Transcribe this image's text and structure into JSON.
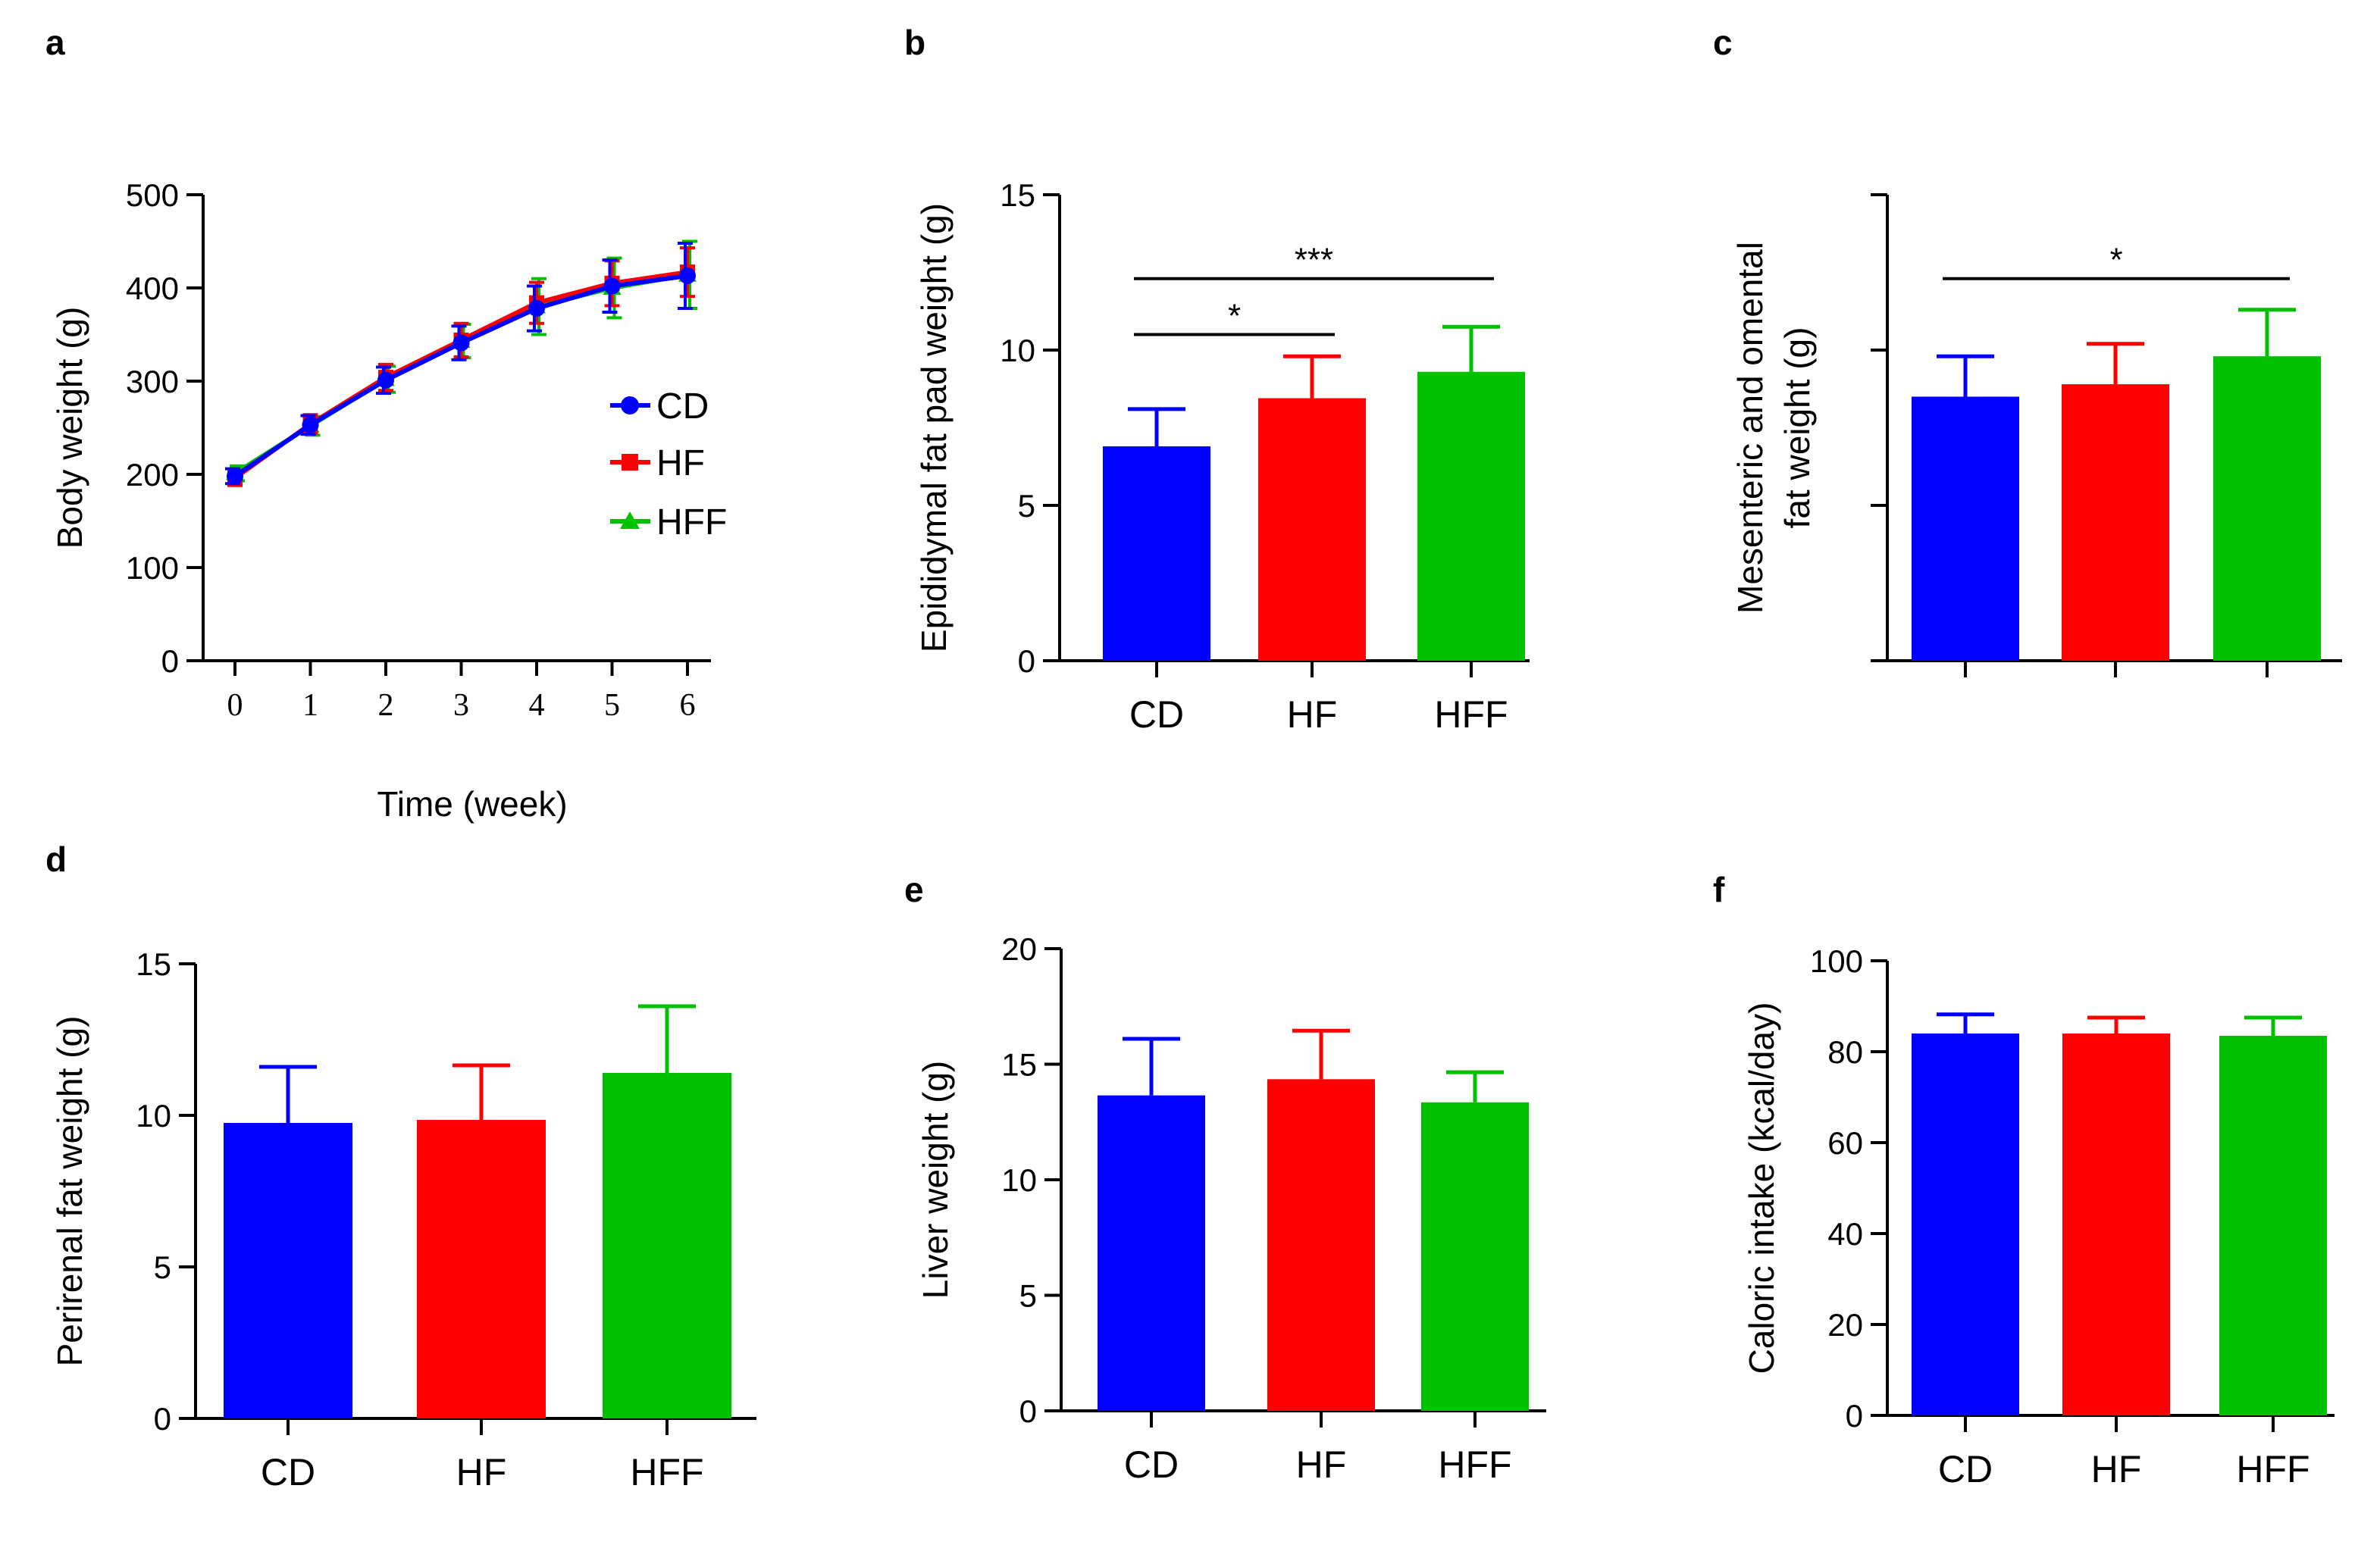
{
  "colors": {
    "CD": "#0000ff",
    "HF": "#ff0000",
    "HFF": "#00c000"
  },
  "chart_data": [
    {
      "id": "a",
      "panel_label": "a",
      "type": "line",
      "xlabel": "Time (week)",
      "ylabel": "Body  weight (g)",
      "x": [
        0,
        1,
        2,
        3,
        4,
        5,
        6
      ],
      "x_tick_labels": [
        "0",
        "1",
        "2",
        "3",
        "4",
        "5",
        "6"
      ],
      "ylim": [
        0,
        500
      ],
      "y_ticks": [
        0,
        100,
        200,
        300,
        400,
        500
      ],
      "legend_position": "middle-right",
      "series": [
        {
          "name": "CD",
          "marker": "circle",
          "values": [
            198,
            253,
            301,
            341,
            378,
            402,
            413
          ],
          "errors": [
            8,
            10,
            14,
            18,
            24,
            28,
            35
          ]
        },
        {
          "name": "HF",
          "marker": "square",
          "values": [
            196,
            254,
            304,
            344,
            384,
            405,
            417
          ],
          "errors": [
            8,
            10,
            14,
            18,
            22,
            24,
            26
          ]
        },
        {
          "name": "HFF",
          "marker": "triangle",
          "values": [
            201,
            252,
            302,
            343,
            380,
            400,
            414
          ],
          "errors": [
            8,
            10,
            14,
            18,
            30,
            32,
            36
          ]
        }
      ]
    },
    {
      "id": "b",
      "panel_label": "b",
      "type": "bar",
      "ylabel": "Epididymal fat pad weight (g)",
      "categories": [
        "CD",
        "HF",
        "HFF"
      ],
      "values": [
        6.9,
        8.45,
        9.3
      ],
      "errors": [
        1.2,
        1.35,
        1.45
      ],
      "ylim": [
        0,
        15
      ],
      "y_ticks": [
        0,
        5,
        10,
        15
      ],
      "significance": [
        {
          "from": 0,
          "to": 1,
          "label": "*",
          "y": 10.5
        },
        {
          "from": 0,
          "to": 2,
          "label": "***",
          "y": 12.3
        }
      ]
    },
    {
      "id": "c",
      "panel_label": "c",
      "type": "bar",
      "ylabel": "Mesenteric and omental fat weight (g)",
      "ylabel_lines": [
        "Mesenteric and omental",
        "fat weight (g)"
      ],
      "categories": [
        "",
        "",
        ""
      ],
      "values": [
        8.5,
        8.9,
        9.8
      ],
      "errors": [
        1.3,
        1.3,
        1.5
      ],
      "ylim": [
        0,
        15
      ],
      "y_ticks": [
        0,
        5,
        10,
        15
      ],
      "show_tick_labels": false,
      "significance": [
        {
          "from": 0,
          "to": 2,
          "label": "*",
          "y": 12.3
        }
      ]
    },
    {
      "id": "d",
      "panel_label": "d",
      "type": "bar",
      "ylabel": "Perirenal fat  weight (g)",
      "categories": [
        "CD",
        "HF",
        "HFF"
      ],
      "values": [
        9.75,
        9.85,
        11.4
      ],
      "errors": [
        1.85,
        1.8,
        2.2
      ],
      "ylim": [
        0,
        15
      ],
      "y_ticks": [
        0,
        5,
        10,
        15
      ]
    },
    {
      "id": "e",
      "panel_label": "e",
      "type": "bar",
      "ylabel": "Liver weight (g)",
      "categories": [
        "CD",
        "HF",
        "HFF"
      ],
      "values": [
        13.65,
        14.35,
        13.35
      ],
      "errors": [
        2.45,
        2.1,
        1.3
      ],
      "ylim": [
        0,
        20
      ],
      "y_ticks": [
        0,
        5,
        10,
        15,
        20
      ]
    },
    {
      "id": "f",
      "panel_label": "f",
      "type": "bar",
      "ylabel": "Caloric intake (kcal/day)",
      "categories": [
        "CD",
        "HF",
        "HFF"
      ],
      "values": [
        84,
        84,
        83.5
      ],
      "errors": [
        4.2,
        3.5,
        4.0
      ],
      "ylim": [
        0,
        100
      ],
      "y_ticks": [
        0,
        20,
        40,
        60,
        80,
        100
      ]
    }
  ]
}
